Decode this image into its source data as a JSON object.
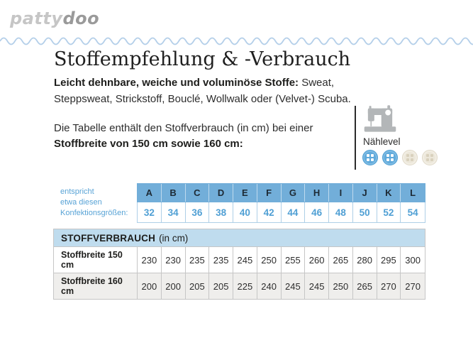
{
  "logo": {
    "part1": "patty",
    "part2": "doo"
  },
  "heading": "Stoffempfehlung & -Verbrauch",
  "intro": {
    "bold": "Leicht dehnbare, weiche und voluminöse Stoffe:",
    "rest": " Sweat, Steppsweat, Strickstoff, Bouclé, Wollwalk oder (Velvet-) Scuba."
  },
  "table_note": {
    "line1": "Die Tabelle enthält den Stoffverbrauch (in cm) bei einer",
    "line2": "Stoffbreite von 150 cm sowie 160 cm:"
  },
  "naehlevel": {
    "label": "Nählevel",
    "active": 2,
    "total": 4,
    "icon": "sewing-machine-icon"
  },
  "size_table": {
    "caption_lines": [
      "entspricht",
      "etwa diesen",
      "Konfektionsgrößen:"
    ],
    "letters": [
      "A",
      "B",
      "C",
      "D",
      "E",
      "F",
      "G",
      "H",
      "I",
      "J",
      "K",
      "L"
    ],
    "sizes": [
      "32",
      "34",
      "36",
      "38",
      "40",
      "42",
      "44",
      "46",
      "48",
      "50",
      "52",
      "54"
    ]
  },
  "consumption_table": {
    "title_bold": "STOFFVERBRAUCH",
    "title_rest": "(in cm)",
    "rows": [
      {
        "label": "Stoffbreite 150 cm",
        "values": [
          "230",
          "230",
          "235",
          "235",
          "245",
          "250",
          "255",
          "260",
          "265",
          "280",
          "295",
          "300"
        ]
      },
      {
        "label": "Stoffbreite 160 cm",
        "values": [
          "200",
          "200",
          "205",
          "205",
          "225",
          "240",
          "245",
          "245",
          "250",
          "265",
          "270",
          "270"
        ]
      }
    ]
  },
  "colors": {
    "header_blue": "#72aed9",
    "value_blue": "#4f9fd4",
    "band_blue": "#bfdcee",
    "wave_blue": "#b4cfe9",
    "button_blue": "#60aadb",
    "button_beige": "#ece7da",
    "logo_light": "#c6c6c6",
    "logo_dark": "#9a9a9a"
  }
}
